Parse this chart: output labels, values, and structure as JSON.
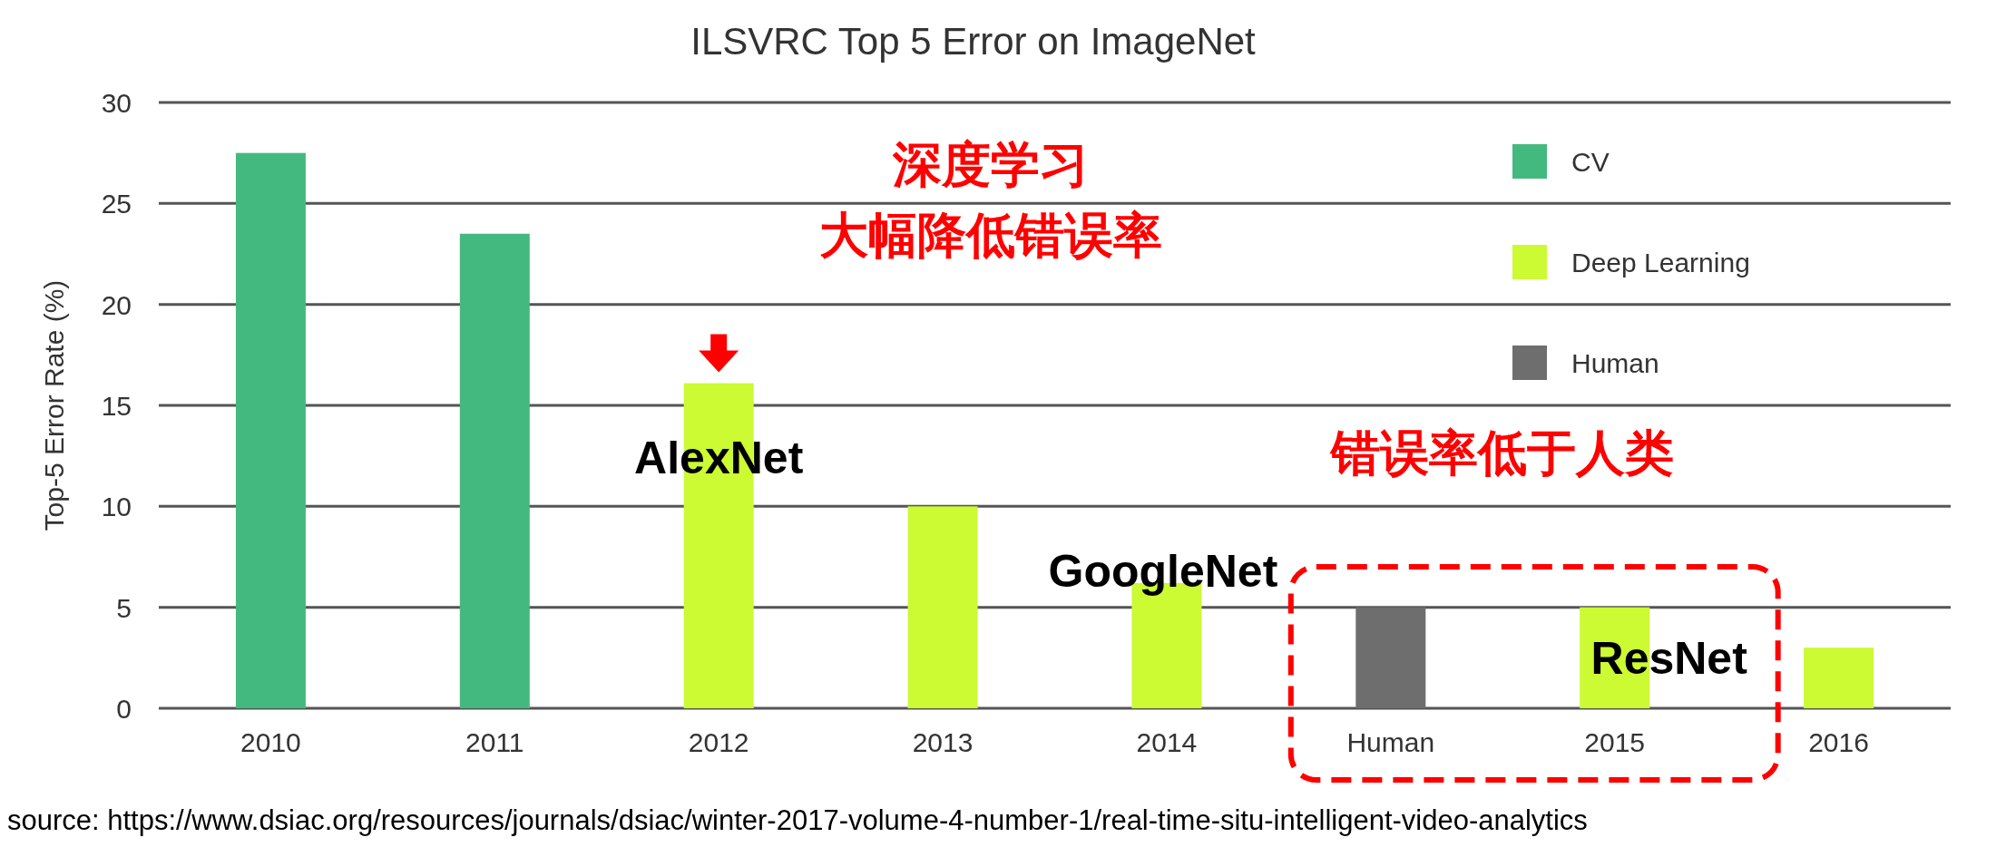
{
  "chart_data": {
    "type": "bar",
    "title": "ILSVRC Top 5 Error on ImageNet",
    "ylabel": "Top-5 Error Rate (%)",
    "categories": [
      "2010",
      "2011",
      "2012",
      "2013",
      "2014",
      "Human",
      "2015",
      "2016"
    ],
    "series": [
      {
        "name": "CV",
        "color": "#44b97f",
        "values": [
          27.5,
          23.5,
          null,
          null,
          null,
          null,
          null,
          null
        ]
      },
      {
        "name": "Deep Learning",
        "color": "#ccfa33",
        "values": [
          null,
          null,
          16.1,
          10,
          6.2,
          null,
          5,
          3
        ]
      },
      {
        "name": "Human",
        "color": "#6e6e6e",
        "values": [
          null,
          null,
          null,
          null,
          null,
          5,
          null,
          null
        ]
      }
    ],
    "ylim": [
      0,
      30
    ],
    "yticks": [
      0,
      5,
      10,
      15,
      20,
      25,
      30
    ],
    "grid": "y",
    "legend": "top right",
    "annotations": [
      "深度学习",
      "大幅降低错误率",
      "AlexNet",
      "GoogleNet",
      "ResNet",
      "错误率低于人类",
      "source: https://www.dsiac.org/resources/journals/dsiac/winter-2017-volume-4-number-1/real-time-situ-intelligent-video-analytics"
    ]
  }
}
